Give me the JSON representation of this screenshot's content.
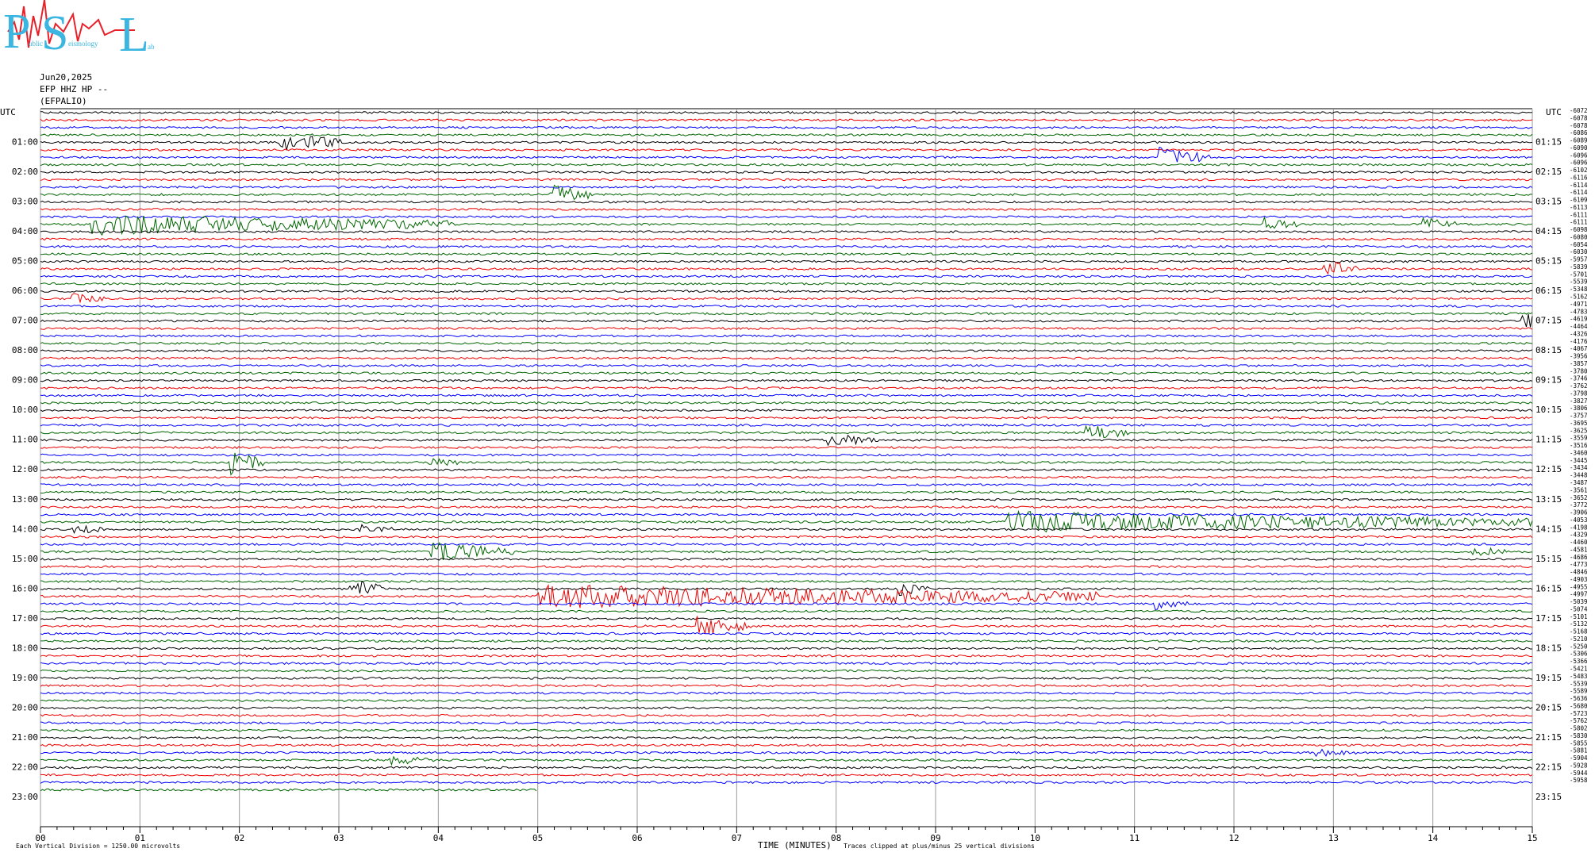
{
  "logo": {
    "letters": [
      "P",
      "S",
      "L"
    ],
    "words": [
      "ublic",
      "eismology",
      "ab"
    ]
  },
  "header": {
    "date": "Jun20,2025",
    "channel": "EFP HHZ HP --",
    "station": "(EFPALIO)"
  },
  "left_timezone": "UTC",
  "right_timezone": "UTC",
  "left_hours": [
    "01:00",
    "02:00",
    "03:00",
    "04:00",
    "05:00",
    "06:00",
    "07:00",
    "08:00",
    "09:00",
    "10:00",
    "11:00",
    "12:00",
    "13:00",
    "14:00",
    "15:00",
    "16:00",
    "17:00",
    "18:00",
    "19:00",
    "20:00",
    "21:00",
    "22:00",
    "23:00"
  ],
  "right_hours": [
    "01:15",
    "02:15",
    "03:15",
    "04:15",
    "05:15",
    "06:15",
    "07:15",
    "08:15",
    "09:15",
    "10:15",
    "11:15",
    "12:15",
    "13:15",
    "14:15",
    "15:15",
    "16:15",
    "17:15",
    "18:15",
    "19:15",
    "20:15",
    "21:15",
    "22:15",
    "23:15"
  ],
  "offsets": [
    -6072,
    -6078,
    -6078,
    -6086,
    -6089,
    -6090,
    -6096,
    -6096,
    -6102,
    -6116,
    -6114,
    -6114,
    -6109,
    -6113,
    -6111,
    -6111,
    -6098,
    -6080,
    -6054,
    -6030,
    -5957,
    -5839,
    -5701,
    -5539,
    -5348,
    -5162,
    -4971,
    -4783,
    -4619,
    -4464,
    -4326,
    -4176,
    -4067,
    -3956,
    -3857,
    -3780,
    -3746,
    -3762,
    -3798,
    -3827,
    -3806,
    -3757,
    -3695,
    -3625,
    -3559,
    -3516,
    -3460,
    -3445,
    -3434,
    -3448,
    -3487,
    -3561,
    -3652,
    -3772,
    -3906,
    -4053,
    -4198,
    -4329,
    -4460,
    -4581,
    -4686,
    -4773,
    -4846,
    -4903,
    -4955,
    -4997,
    -5039,
    -5074,
    -5101,
    -5132,
    -5168,
    -5210,
    -5250,
    -5306,
    -5366,
    -5421,
    -5483,
    -5539,
    -5589,
    -5636,
    -5680,
    -5723,
    -5762,
    -5802,
    -5830,
    -5855,
    -5881,
    -5904,
    -5928,
    -5944,
    -5958
  ],
  "x_ticks": [
    "00",
    "01",
    "02",
    "03",
    "04",
    "05",
    "06",
    "07",
    "08",
    "09",
    "10",
    "11",
    "12",
    "13",
    "14",
    "15"
  ],
  "footer": {
    "scale_note": "Each Vertical Division = 1250.00 microvolts",
    "x_label": "TIME (MINUTES)",
    "clip_note": "Traces clipped at plus/minus 25 vertical divisions"
  }
}
